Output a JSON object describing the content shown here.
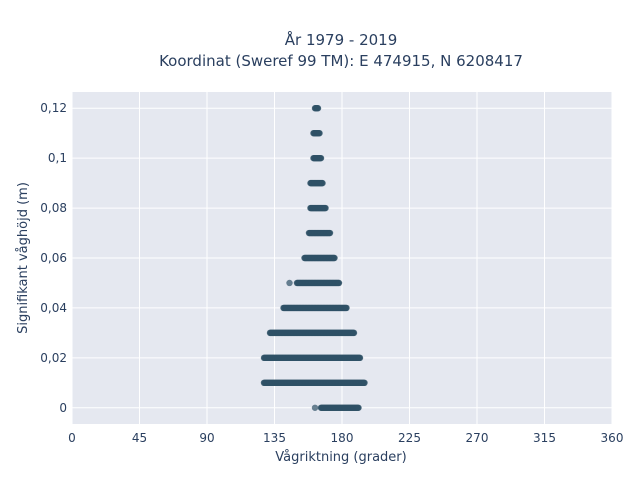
{
  "chart_data": {
    "type": "scatter",
    "title_line1": "År 1979 - 2019",
    "title_line2": "Koordinat (Sweref 99 TM): E 474915, N 6208417",
    "xlabel": "Vågriktning (grader)",
    "ylabel": "Signifikant våghöjd (m)",
    "xlim": [
      0,
      360
    ],
    "ylim": [
      -0.0065,
      0.1265
    ],
    "x_ticks": [
      0,
      45,
      90,
      135,
      180,
      225,
      270,
      315,
      360
    ],
    "x_tick_labels": [
      "0",
      "45",
      "90",
      "135",
      "180",
      "225",
      "270",
      "315",
      "360"
    ],
    "y_ticks": [
      0,
      0.02,
      0.04,
      0.06,
      0.08,
      0.1,
      0.12
    ],
    "y_tick_labels": [
      "0",
      "0,02",
      "0,04",
      "0,06",
      "0,08",
      "0,1",
      "0,12"
    ],
    "grid": true,
    "marker_color": "#2f5166",
    "plot_background": "#e5e8f0",
    "bands": [
      {
        "y": 0.0,
        "x_min": 166,
        "x_max": 191
      },
      {
        "y": 0.01,
        "x_min": 128,
        "x_max": 195
      },
      {
        "y": 0.02,
        "x_min": 128,
        "x_max": 192
      },
      {
        "y": 0.03,
        "x_min": 132,
        "x_max": 188
      },
      {
        "y": 0.04,
        "x_min": 141,
        "x_max": 183
      },
      {
        "y": 0.05,
        "x_min": 150,
        "x_max": 178
      },
      {
        "y": 0.06,
        "x_min": 155,
        "x_max": 175
      },
      {
        "y": 0.07,
        "x_min": 158,
        "x_max": 172
      },
      {
        "y": 0.08,
        "x_min": 159,
        "x_max": 169
      },
      {
        "y": 0.09,
        "x_min": 159,
        "x_max": 167
      },
      {
        "y": 0.1,
        "x_min": 161,
        "x_max": 166
      },
      {
        "y": 0.11,
        "x_min": 161,
        "x_max": 165
      },
      {
        "y": 0.12,
        "x_min": 162,
        "x_max": 164
      }
    ],
    "outliers": [
      {
        "x": 162,
        "y": 0.0
      },
      {
        "x": 145,
        "y": 0.05
      }
    ]
  }
}
